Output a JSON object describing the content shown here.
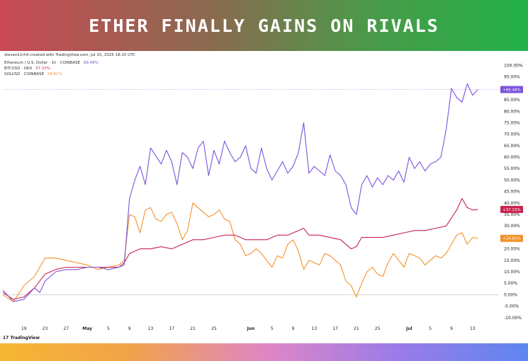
{
  "headline": "ETHER FINALLY GAINS ON RIVALS",
  "credit": "stevenk1rh4 created with TradingView.com, Jul 15, 2025 18:15 UTC",
  "brand": "TradingView",
  "chart_data": {
    "type": "line",
    "title": "",
    "xlabel": "",
    "ylabel": "",
    "y_unit": "%",
    "ylim": [
      -15,
      102
    ],
    "yticks": [
      -10,
      -5,
      0,
      5,
      10,
      15,
      20,
      25,
      30,
      35,
      40,
      45,
      50,
      55,
      60,
      65,
      70,
      75,
      80,
      85,
      90,
      95,
      100
    ],
    "ytick_labels": [
      "-10.00%",
      "-5.00%",
      "0.00%",
      "5.00%",
      "10.00%",
      "15.00%",
      "20.00%",
      "25.00%",
      "30.00%",
      "35.00%",
      "40.00%",
      "45.00%",
      "50.00%",
      "55.00%",
      "60.00%",
      "65.00%",
      "70.00%",
      "75.00%",
      "80.00%",
      "85.00%",
      "90.00%",
      "95.00%",
      "100.00%"
    ],
    "xlim": [
      0,
      94
    ],
    "xticks": [
      {
        "pos": 4,
        "label": "19",
        "bold": false
      },
      {
        "pos": 8,
        "label": "23",
        "bold": false
      },
      {
        "pos": 12,
        "label": "27",
        "bold": false
      },
      {
        "pos": 16,
        "label": "May",
        "bold": true
      },
      {
        "pos": 20,
        "label": "5",
        "bold": false
      },
      {
        "pos": 24,
        "label": "9",
        "bold": false
      },
      {
        "pos": 28,
        "label": "13",
        "bold": false
      },
      {
        "pos": 32,
        "label": "17",
        "bold": false
      },
      {
        "pos": 36,
        "label": "21",
        "bold": false
      },
      {
        "pos": 40,
        "label": "25",
        "bold": false
      },
      {
        "pos": 47,
        "label": "Jun",
        "bold": true
      },
      {
        "pos": 51,
        "label": "5",
        "bold": false
      },
      {
        "pos": 55,
        "label": "9",
        "bold": false
      },
      {
        "pos": 59,
        "label": "13",
        "bold": false
      },
      {
        "pos": 63,
        "label": "17",
        "bold": false
      },
      {
        "pos": 67,
        "label": "21",
        "bold": false
      },
      {
        "pos": 71,
        "label": "25",
        "bold": false
      },
      {
        "pos": 77,
        "label": "Jul",
        "bold": true
      },
      {
        "pos": 81,
        "label": "5",
        "bold": false
      },
      {
        "pos": 85,
        "label": "9",
        "bold": false
      },
      {
        "pos": 89,
        "label": "13",
        "bold": false
      }
    ],
    "grid": false,
    "legend_position": "top-left",
    "series": [
      {
        "name": "Ethereum / U.S. Dollar · 1h · COINBASE",
        "legend_value": "89.48%",
        "badge": "+89.48%",
        "color": "#7b52dc",
        "points": [
          [
            0,
            2
          ],
          [
            2,
            -3
          ],
          [
            4,
            -2
          ],
          [
            6,
            3
          ],
          [
            7,
            1
          ],
          [
            8,
            6
          ],
          [
            10,
            10
          ],
          [
            12,
            11
          ],
          [
            14,
            11
          ],
          [
            16,
            12
          ],
          [
            18,
            12
          ],
          [
            20,
            11
          ],
          [
            22,
            12
          ],
          [
            23,
            13
          ],
          [
            24,
            42
          ],
          [
            25,
            50
          ],
          [
            26,
            56
          ],
          [
            27,
            48
          ],
          [
            28,
            64
          ],
          [
            30,
            57
          ],
          [
            31,
            63
          ],
          [
            32,
            58
          ],
          [
            33,
            48
          ],
          [
            34,
            62
          ],
          [
            35,
            60
          ],
          [
            36,
            55
          ],
          [
            37,
            64
          ],
          [
            38,
            67
          ],
          [
            39,
            52
          ],
          [
            40,
            63
          ],
          [
            41,
            57
          ],
          [
            42,
            67
          ],
          [
            43,
            62
          ],
          [
            44,
            58
          ],
          [
            45,
            60
          ],
          [
            46,
            65
          ],
          [
            47,
            55
          ],
          [
            48,
            53
          ],
          [
            49,
            64
          ],
          [
            50,
            55
          ],
          [
            51,
            50
          ],
          [
            52,
            54
          ],
          [
            53,
            58
          ],
          [
            54,
            53
          ],
          [
            55,
            56
          ],
          [
            56,
            62
          ],
          [
            57,
            75
          ],
          [
            58,
            53
          ],
          [
            59,
            56
          ],
          [
            60,
            54
          ],
          [
            61,
            52
          ],
          [
            62,
            61
          ],
          [
            63,
            54
          ],
          [
            64,
            52
          ],
          [
            65,
            48
          ],
          [
            66,
            38
          ],
          [
            67,
            35
          ],
          [
            68,
            48
          ],
          [
            69,
            52
          ],
          [
            70,
            47
          ],
          [
            71,
            51
          ],
          [
            72,
            48
          ],
          [
            73,
            52
          ],
          [
            74,
            50
          ],
          [
            75,
            54
          ],
          [
            76,
            49
          ],
          [
            77,
            60
          ],
          [
            78,
            55
          ],
          [
            79,
            58
          ],
          [
            80,
            54
          ],
          [
            81,
            57
          ],
          [
            82,
            58
          ],
          [
            83,
            60
          ],
          [
            84,
            72
          ],
          [
            85,
            90
          ],
          [
            86,
            86
          ],
          [
            87,
            84
          ],
          [
            88,
            92
          ],
          [
            89,
            87
          ],
          [
            90,
            89.5
          ]
        ]
      },
      {
        "name": "BTCUSD · OKX",
        "legend_value": "37.23%",
        "badge": "+37.23%",
        "color": "#c8234e",
        "points": [
          [
            0,
            1
          ],
          [
            2,
            -2
          ],
          [
            4,
            -1
          ],
          [
            6,
            3
          ],
          [
            8,
            9
          ],
          [
            10,
            11
          ],
          [
            12,
            12
          ],
          [
            14,
            12
          ],
          [
            16,
            12
          ],
          [
            18,
            12
          ],
          [
            20,
            12
          ],
          [
            22,
            12
          ],
          [
            23,
            14
          ],
          [
            24,
            18
          ],
          [
            26,
            20
          ],
          [
            28,
            20
          ],
          [
            30,
            21
          ],
          [
            32,
            20
          ],
          [
            34,
            22
          ],
          [
            36,
            24
          ],
          [
            38,
            24
          ],
          [
            40,
            25
          ],
          [
            42,
            26
          ],
          [
            44,
            26
          ],
          [
            45,
            25
          ],
          [
            46,
            24
          ],
          [
            48,
            24
          ],
          [
            50,
            24
          ],
          [
            52,
            26
          ],
          [
            54,
            26
          ],
          [
            56,
            28
          ],
          [
            57,
            29
          ],
          [
            58,
            26
          ],
          [
            60,
            26
          ],
          [
            62,
            25
          ],
          [
            64,
            24
          ],
          [
            66,
            20
          ],
          [
            67,
            21
          ],
          [
            68,
            25
          ],
          [
            70,
            25
          ],
          [
            72,
            25
          ],
          [
            74,
            26
          ],
          [
            76,
            27
          ],
          [
            78,
            28
          ],
          [
            80,
            28
          ],
          [
            82,
            29
          ],
          [
            84,
            30
          ],
          [
            86,
            37
          ],
          [
            87,
            42
          ],
          [
            88,
            38
          ],
          [
            89,
            37
          ],
          [
            90,
            37.2
          ]
        ]
      },
      {
        "name": "SOLUSD · COINBASE",
        "legend_value": "24.61%",
        "badge": "+24.61%",
        "color": "#f2922b",
        "points": [
          [
            0,
            0
          ],
          [
            2,
            -3
          ],
          [
            4,
            4
          ],
          [
            6,
            8
          ],
          [
            8,
            16
          ],
          [
            10,
            16
          ],
          [
            12,
            15
          ],
          [
            14,
            14
          ],
          [
            16,
            13
          ],
          [
            18,
            11
          ],
          [
            20,
            12
          ],
          [
            22,
            13
          ],
          [
            23,
            15
          ],
          [
            24,
            35
          ],
          [
            25,
            34
          ],
          [
            26,
            27
          ],
          [
            27,
            37
          ],
          [
            28,
            38
          ],
          [
            29,
            33
          ],
          [
            30,
            32
          ],
          [
            31,
            35
          ],
          [
            32,
            36
          ],
          [
            33,
            31
          ],
          [
            34,
            24
          ],
          [
            35,
            28
          ],
          [
            36,
            40
          ],
          [
            37,
            38
          ],
          [
            38,
            36
          ],
          [
            39,
            34
          ],
          [
            40,
            35
          ],
          [
            41,
            37
          ],
          [
            42,
            33
          ],
          [
            43,
            32
          ],
          [
            44,
            24
          ],
          [
            45,
            22
          ],
          [
            46,
            17
          ],
          [
            47,
            18
          ],
          [
            48,
            20
          ],
          [
            49,
            18
          ],
          [
            50,
            15
          ],
          [
            51,
            12
          ],
          [
            52,
            17
          ],
          [
            53,
            16
          ],
          [
            54,
            22
          ],
          [
            55,
            24
          ],
          [
            56,
            19
          ],
          [
            57,
            11
          ],
          [
            58,
            15
          ],
          [
            59,
            14
          ],
          [
            60,
            13
          ],
          [
            61,
            18
          ],
          [
            62,
            17
          ],
          [
            63,
            15
          ],
          [
            64,
            13
          ],
          [
            65,
            6
          ],
          [
            66,
            4
          ],
          [
            67,
            -1
          ],
          [
            68,
            5
          ],
          [
            69,
            10
          ],
          [
            70,
            12
          ],
          [
            71,
            9
          ],
          [
            72,
            8
          ],
          [
            73,
            14
          ],
          [
            74,
            18
          ],
          [
            75,
            15
          ],
          [
            76,
            12
          ],
          [
            77,
            18
          ],
          [
            78,
            17
          ],
          [
            79,
            16
          ],
          [
            80,
            13
          ],
          [
            81,
            15
          ],
          [
            82,
            17
          ],
          [
            83,
            16
          ],
          [
            84,
            18
          ],
          [
            85,
            22
          ],
          [
            86,
            26
          ],
          [
            87,
            27
          ],
          [
            88,
            22
          ],
          [
            89,
            25
          ],
          [
            90,
            24.6
          ]
        ]
      }
    ]
  }
}
